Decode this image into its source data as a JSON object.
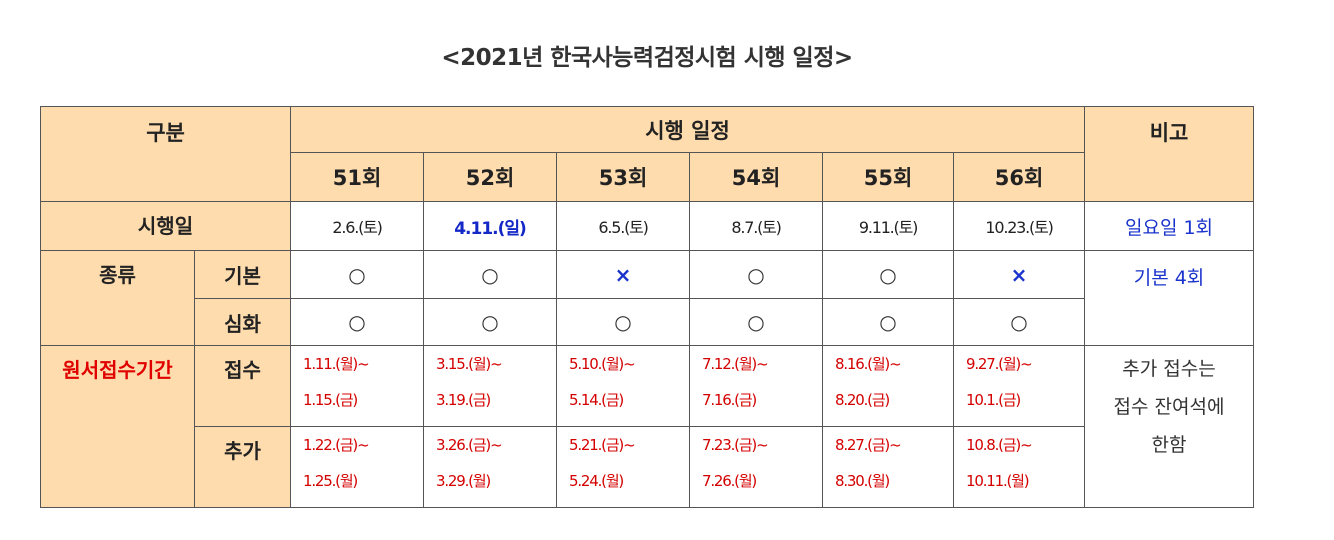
{
  "title": "<2021년 한국사능력검정시험 시행 일정>",
  "headers": {
    "category": "구분",
    "schedule": "시행 일정",
    "note": "비고",
    "sessions": [
      "51회",
      "52회",
      "53회",
      "54회",
      "55회",
      "56회"
    ]
  },
  "exam_day": {
    "label": "시행일",
    "dates": [
      "2.6.(토)",
      "4.11.(일)",
      "6.5.(토)",
      "8.7.(토)",
      "9.11.(토)",
      "10.23.(토)"
    ],
    "note": "일요일 1회"
  },
  "types": {
    "label": "종류",
    "basic": {
      "label": "기본",
      "marks": [
        "○",
        "○",
        "×",
        "○",
        "○",
        "×"
      ]
    },
    "advanced": {
      "label": "심화",
      "marks": [
        "○",
        "○",
        "○",
        "○",
        "○",
        "○"
      ]
    },
    "note": "기본 4회"
  },
  "application": {
    "label": "원서접수기간",
    "regular": {
      "label": "접수",
      "periods": [
        [
          "1.11.(월)~",
          "1.15.(금)"
        ],
        [
          "3.15.(월)~",
          "3.19.(금)"
        ],
        [
          "5.10.(월)~",
          "5.14.(금)"
        ],
        [
          "7.12.(월)~",
          "7.16.(금)"
        ],
        [
          "8.16.(월)~",
          "8.20.(금)"
        ],
        [
          "9.27.(월)~",
          "10.1.(금)"
        ]
      ]
    },
    "additional": {
      "label": "추가",
      "periods": [
        [
          "1.22.(금)~",
          "1.25.(월)"
        ],
        [
          "3.26.(금)~",
          "3.29.(월)"
        ],
        [
          "5.21.(금)~",
          "5.24.(월)"
        ],
        [
          "7.23.(금)~",
          "7.26.(월)"
        ],
        [
          "8.27.(금)~",
          "8.30.(월)"
        ],
        [
          "10.8.(금)~",
          "10.11.(월)"
        ]
      ]
    },
    "note_lines": [
      "추가 접수는",
      "접수 잔여석에",
      "한함"
    ]
  },
  "colors": {
    "header_bg": "#ffdcae",
    "highlight_blue": "#1428c8",
    "date_red": "#d40000",
    "label_red": "#e00000"
  }
}
